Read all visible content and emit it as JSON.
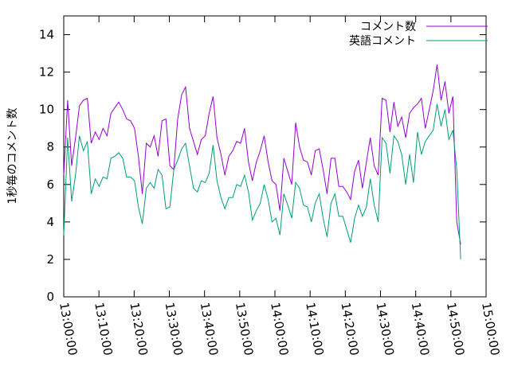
{
  "chart_data": {
    "type": "line",
    "ylabel": "1秒毎のコメント数",
    "x": [
      "13:00:00",
      "13:01:07",
      "13:02:14",
      "13:03:21",
      "13:04:28",
      "13:05:35",
      "13:06:42",
      "13:07:49",
      "13:08:56",
      "13:10:03",
      "13:11:10",
      "13:12:17",
      "13:13:24",
      "13:14:31",
      "13:15:38",
      "13:16:45",
      "13:17:52",
      "13:18:59",
      "13:20:06",
      "13:21:13",
      "13:22:20",
      "13:23:27",
      "13:24:34",
      "13:25:41",
      "13:26:48",
      "13:27:55",
      "13:29:02",
      "13:30:09",
      "13:31:16",
      "13:32:23",
      "13:33:30",
      "13:34:37",
      "13:35:44",
      "13:36:51",
      "13:37:58",
      "13:39:05",
      "13:40:12",
      "13:41:19",
      "13:42:26",
      "13:43:33",
      "13:44:40",
      "13:45:47",
      "13:46:54",
      "13:48:01",
      "13:49:08",
      "13:50:15",
      "13:51:22",
      "13:52:29",
      "13:53:36",
      "13:54:43",
      "13:55:50",
      "13:56:57",
      "13:58:04",
      "13:59:11",
      "14:00:18",
      "14:01:25",
      "14:02:32",
      "14:03:39",
      "14:04:46",
      "14:05:53",
      "14:07:00",
      "14:08:07",
      "14:09:14",
      "14:10:21",
      "14:11:28",
      "14:12:35",
      "14:13:42",
      "14:14:49",
      "14:15:56",
      "14:17:03",
      "14:18:10",
      "14:19:17",
      "14:20:24",
      "14:21:31",
      "14:22:38",
      "14:23:45",
      "14:24:52",
      "14:25:59",
      "14:27:06",
      "14:28:13",
      "14:29:20",
      "14:30:27",
      "14:31:34",
      "14:32:41",
      "14:33:48",
      "14:34:55",
      "14:36:02",
      "14:37:09",
      "14:38:16",
      "14:39:23",
      "14:40:30",
      "14:41:37",
      "14:42:44",
      "14:43:51",
      "14:44:58",
      "14:46:05",
      "14:47:12",
      "14:48:19",
      "14:49:26",
      "14:50:33",
      "14:51:40",
      "14:52:47"
    ],
    "series": [
      {
        "name": "コメント数",
        "color": "#9400d3",
        "values": [
          6.5,
          10.5,
          7.0,
          8.5,
          10.2,
          10.5,
          10.6,
          8.2,
          8.8,
          8.4,
          9.0,
          8.6,
          9.8,
          10.1,
          10.4,
          10.0,
          9.5,
          9.4,
          9.0,
          7.5,
          5.5,
          8.2,
          8.0,
          8.6,
          7.5,
          9.4,
          9.5,
          7.0,
          6.8,
          9.5,
          10.8,
          11.2,
          9.0,
          8.3,
          7.6,
          8.4,
          8.6,
          9.8,
          10.7,
          8.5,
          7.6,
          6.5,
          7.5,
          7.8,
          8.3,
          8.2,
          9.0,
          7.2,
          6.2,
          7.2,
          7.8,
          8.6,
          7.2,
          6.2,
          6.0,
          4.6,
          7.4,
          6.7,
          6.0,
          9.3,
          8.0,
          7.3,
          7.2,
          6.5,
          7.8,
          7.9,
          6.8,
          5.5,
          7.4,
          7.4,
          5.9,
          5.9,
          5.6,
          5.2,
          6.7,
          7.3,
          5.8,
          7.2,
          8.5,
          7.0,
          6.5,
          10.6,
          10.5,
          8.8,
          10.4,
          9.1,
          9.6,
          8.5,
          9.8,
          10.1,
          10.3,
          10.6,
          9.0,
          10.0,
          11.0,
          12.4,
          10.5,
          11.5,
          9.8,
          10.7,
          4.0,
          2.8
        ]
      },
      {
        "name": "英語コメント",
        "color": "#009e73",
        "values": [
          3.3,
          8.5,
          5.1,
          6.5,
          8.6,
          7.8,
          8.3,
          5.5,
          6.3,
          5.9,
          6.4,
          6.3,
          7.4,
          7.5,
          7.7,
          7.4,
          6.4,
          6.4,
          6.2,
          4.8,
          3.9,
          5.8,
          6.1,
          5.8,
          6.8,
          6.5,
          4.7,
          4.8,
          6.8,
          7.3,
          7.9,
          8.2,
          7.0,
          5.8,
          5.6,
          6.2,
          6.1,
          6.6,
          8.1,
          6.2,
          5.3,
          4.7,
          5.3,
          5.3,
          6.0,
          5.9,
          6.5,
          5.6,
          4.1,
          4.6,
          5.0,
          6.0,
          5.2,
          4.0,
          4.2,
          3.3,
          5.5,
          4.9,
          4.2,
          6.1,
          5.8,
          4.9,
          4.8,
          4.0,
          5.0,
          5.5,
          4.2,
          3.2,
          5.0,
          5.5,
          4.3,
          4.3,
          3.6,
          2.9,
          4.2,
          4.9,
          4.3,
          4.8,
          6.3,
          4.9,
          4.0,
          8.5,
          8.2,
          6.6,
          8.6,
          8.3,
          7.6,
          6.0,
          7.6,
          6.1,
          8.8,
          7.6,
          8.3,
          8.6,
          8.9,
          10.3,
          9.1,
          10.0,
          8.4,
          8.9,
          6.8,
          2.0
        ]
      }
    ],
    "xlim": [
      "13:00:00",
      "15:00:00"
    ],
    "xticks": [
      "13:00:00",
      "13:10:00",
      "13:20:00",
      "13:30:00",
      "13:40:00",
      "13:50:00",
      "14:00:00",
      "14:10:00",
      "14:20:00",
      "14:30:00",
      "14:40:00",
      "14:50:00",
      "15:00:00"
    ],
    "ylim": [
      0,
      15
    ],
    "yticks": [
      0,
      2,
      4,
      6,
      8,
      10,
      12,
      14
    ],
    "legend": "top-right"
  }
}
